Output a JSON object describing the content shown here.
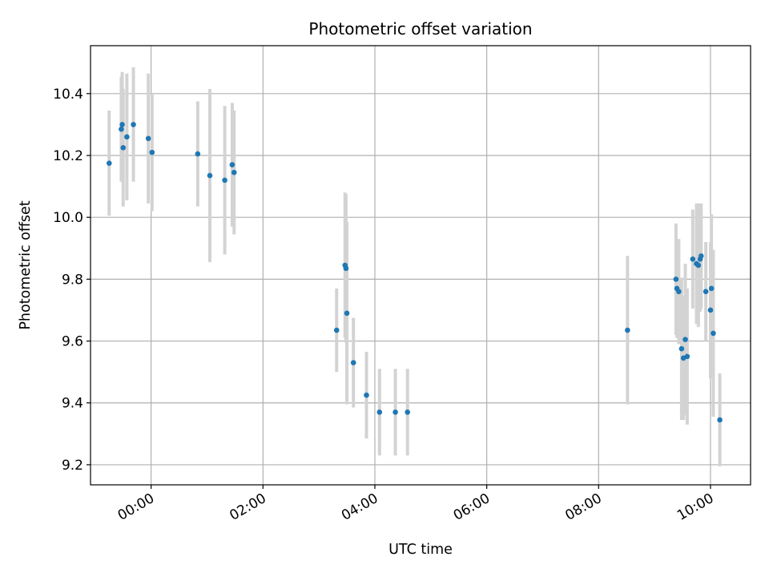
{
  "chart_data": {
    "type": "scatter",
    "title": "Photometric offset variation",
    "xlabel": "UTC time",
    "ylabel": "Photometric offset",
    "x_axis_type": "time",
    "xlim": [
      "23:15",
      "10:43"
    ],
    "ylim": [
      9.135,
      10.555
    ],
    "x_ticks": [
      "00:00",
      "02:00",
      "04:00",
      "06:00",
      "08:00",
      "10:00"
    ],
    "y_ticks": [
      "9.2",
      "9.4",
      "9.6",
      "9.8",
      "10.0",
      "10.2",
      "10.4"
    ],
    "grid": true,
    "legend": "none",
    "marker_color": "#1f77b4",
    "errorbar_color": "#d3d3d3",
    "series": [
      {
        "points": [
          {
            "x": "23:15",
            "y": 10.175,
            "err": 0.17
          },
          {
            "x": "23:28",
            "y": 10.285,
            "err": 0.17
          },
          {
            "x": "23:29",
            "y": 10.3,
            "err": 0.17
          },
          {
            "x": "23:30",
            "y": 10.225,
            "err": 0.19
          },
          {
            "x": "23:34",
            "y": 10.26,
            "err": 0.205
          },
          {
            "x": "23:41",
            "y": 10.3,
            "err": 0.185
          },
          {
            "x": "23:57",
            "y": 10.255,
            "err": 0.21
          },
          {
            "x": "00:01",
            "y": 10.21,
            "err": 0.19
          },
          {
            "x": "00:50",
            "y": 10.205,
            "err": 0.17
          },
          {
            "x": "01:03",
            "y": 10.135,
            "err": 0.28
          },
          {
            "x": "01:19",
            "y": 10.12,
            "err": 0.24
          },
          {
            "x": "01:27",
            "y": 10.17,
            "err": 0.2
          },
          {
            "x": "01:29",
            "y": 10.145,
            "err": 0.2
          },
          {
            "x": "03:19",
            "y": 9.635,
            "err": 0.135
          },
          {
            "x": "03:28",
            "y": 9.845,
            "err": 0.235
          },
          {
            "x": "03:29",
            "y": 9.835,
            "err": 0.24
          },
          {
            "x": "03:30",
            "y": 9.69,
            "err": 0.295
          },
          {
            "x": "03:37",
            "y": 9.53,
            "err": 0.145
          },
          {
            "x": "03:51",
            "y": 9.425,
            "err": 0.14
          },
          {
            "x": "04:05",
            "y": 9.37,
            "err": 0.14
          },
          {
            "x": "04:22",
            "y": 9.37,
            "err": 0.14
          },
          {
            "x": "04:35",
            "y": 9.37,
            "err": 0.14
          },
          {
            "x": "08:31",
            "y": 9.635,
            "err": 0.24
          },
          {
            "x": "09:23",
            "y": 9.8,
            "err": 0.18
          },
          {
            "x": "09:24",
            "y": 9.77,
            "err": 0.16
          },
          {
            "x": "09:26",
            "y": 9.76,
            "err": 0.17
          },
          {
            "x": "09:29",
            "y": 9.575,
            "err": 0.23
          },
          {
            "x": "09:31",
            "y": 9.545,
            "err": 0.2
          },
          {
            "x": "09:33",
            "y": 9.605,
            "err": 0.245
          },
          {
            "x": "09:35",
            "y": 9.55,
            "err": 0.22
          },
          {
            "x": "09:41",
            "y": 9.865,
            "err": 0.16
          },
          {
            "x": "09:45",
            "y": 9.85,
            "err": 0.195
          },
          {
            "x": "09:47",
            "y": 9.845,
            "err": 0.2
          },
          {
            "x": "09:49",
            "y": 9.865,
            "err": 0.17
          },
          {
            "x": "09:50",
            "y": 9.875,
            "err": 0.17
          },
          {
            "x": "09:55",
            "y": 9.76,
            "err": 0.16
          },
          {
            "x": "10:00",
            "y": 9.7,
            "err": 0.22
          },
          {
            "x": "10:01",
            "y": 9.77,
            "err": 0.24
          },
          {
            "x": "10:03",
            "y": 9.625,
            "err": 0.27
          },
          {
            "x": "10:10",
            "y": 9.345,
            "err": 0.15
          }
        ]
      }
    ]
  }
}
